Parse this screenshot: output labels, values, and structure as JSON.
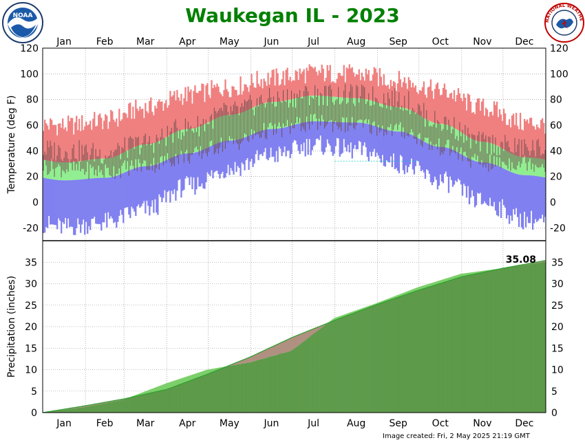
{
  "page": {
    "title": "Waukegan IL - 2023",
    "footer": "Image created: Fri, 2 May 2025 21:19 GMT",
    "logo_left_text": "NOAA",
    "logo_right_text": "NATIONAL WEATHER SERVICE"
  },
  "colors": {
    "title": "#008000",
    "record_high_band": "#f08080",
    "normal_band": "#90ee90",
    "record_low_band": "#8080f0",
    "observed_bar": "#6b4a4a",
    "precip_observed": "#5d9a4a",
    "precip_normal_fill": "#b09080",
    "precip_normal_line": "#2ca02c",
    "grid": "#808080"
  },
  "chart_data": [
    {
      "type": "area",
      "title": "Waukegan IL - 2023",
      "ylabel": "Temperature (deg F)",
      "ylim": [
        -30,
        120
      ],
      "yticks": [
        -20,
        0,
        20,
        40,
        60,
        80,
        100,
        120
      ],
      "months": [
        "Jan",
        "Feb",
        "Mar",
        "Apr",
        "May",
        "Jun",
        "Jul",
        "Aug",
        "Sep",
        "Oct",
        "Nov",
        "Dec"
      ],
      "grid": true,
      "reference_line_y": 32,
      "series": [],
      "monthly_bands": {
        "record_high": [
          58,
          62,
          72,
          82,
          88,
          95,
          99,
          98,
          93,
          85,
          72,
          60
        ],
        "normal_high": [
          31,
          34,
          45,
          57,
          68,
          78,
          83,
          81,
          74,
          61,
          47,
          35
        ],
        "normal_low": [
          17,
          19,
          28,
          38,
          48,
          57,
          63,
          62,
          55,
          43,
          31,
          21
        ],
        "record_low": [
          -18,
          -14,
          -4,
          14,
          28,
          38,
          46,
          42,
          32,
          18,
          2,
          -12
        ],
        "observed_high": [
          40,
          38,
          46,
          58,
          70,
          80,
          84,
          83,
          80,
          62,
          46,
          42
        ],
        "observed_low": [
          26,
          24,
          29,
          36,
          46,
          56,
          62,
          60,
          56,
          43,
          30,
          31
        ]
      }
    },
    {
      "type": "area",
      "ylabel": "Precipitation (inches)",
      "ylim": [
        0,
        40
      ],
      "yticks": [
        0,
        5,
        10,
        15,
        20,
        25,
        30,
        35
      ],
      "months": [
        "Jan",
        "Feb",
        "Mar",
        "Apr",
        "May",
        "Jun",
        "Jul",
        "Aug",
        "Sep",
        "Oct",
        "Nov",
        "Dec"
      ],
      "grid": true,
      "annotation": "35.08",
      "series": [],
      "monthly_end_values": {
        "observed_cumulative": [
          1.3,
          3.0,
          6.8,
          10.0,
          11.7,
          14.4,
          22.0,
          25.5,
          29.2,
          32.3,
          33.6,
          35.08
        ],
        "normal_cumulative": [
          1.6,
          3.2,
          5.4,
          9.0,
          13.0,
          17.5,
          21.5,
          25.2,
          28.5,
          31.6,
          33.6,
          35.4
        ]
      }
    }
  ]
}
